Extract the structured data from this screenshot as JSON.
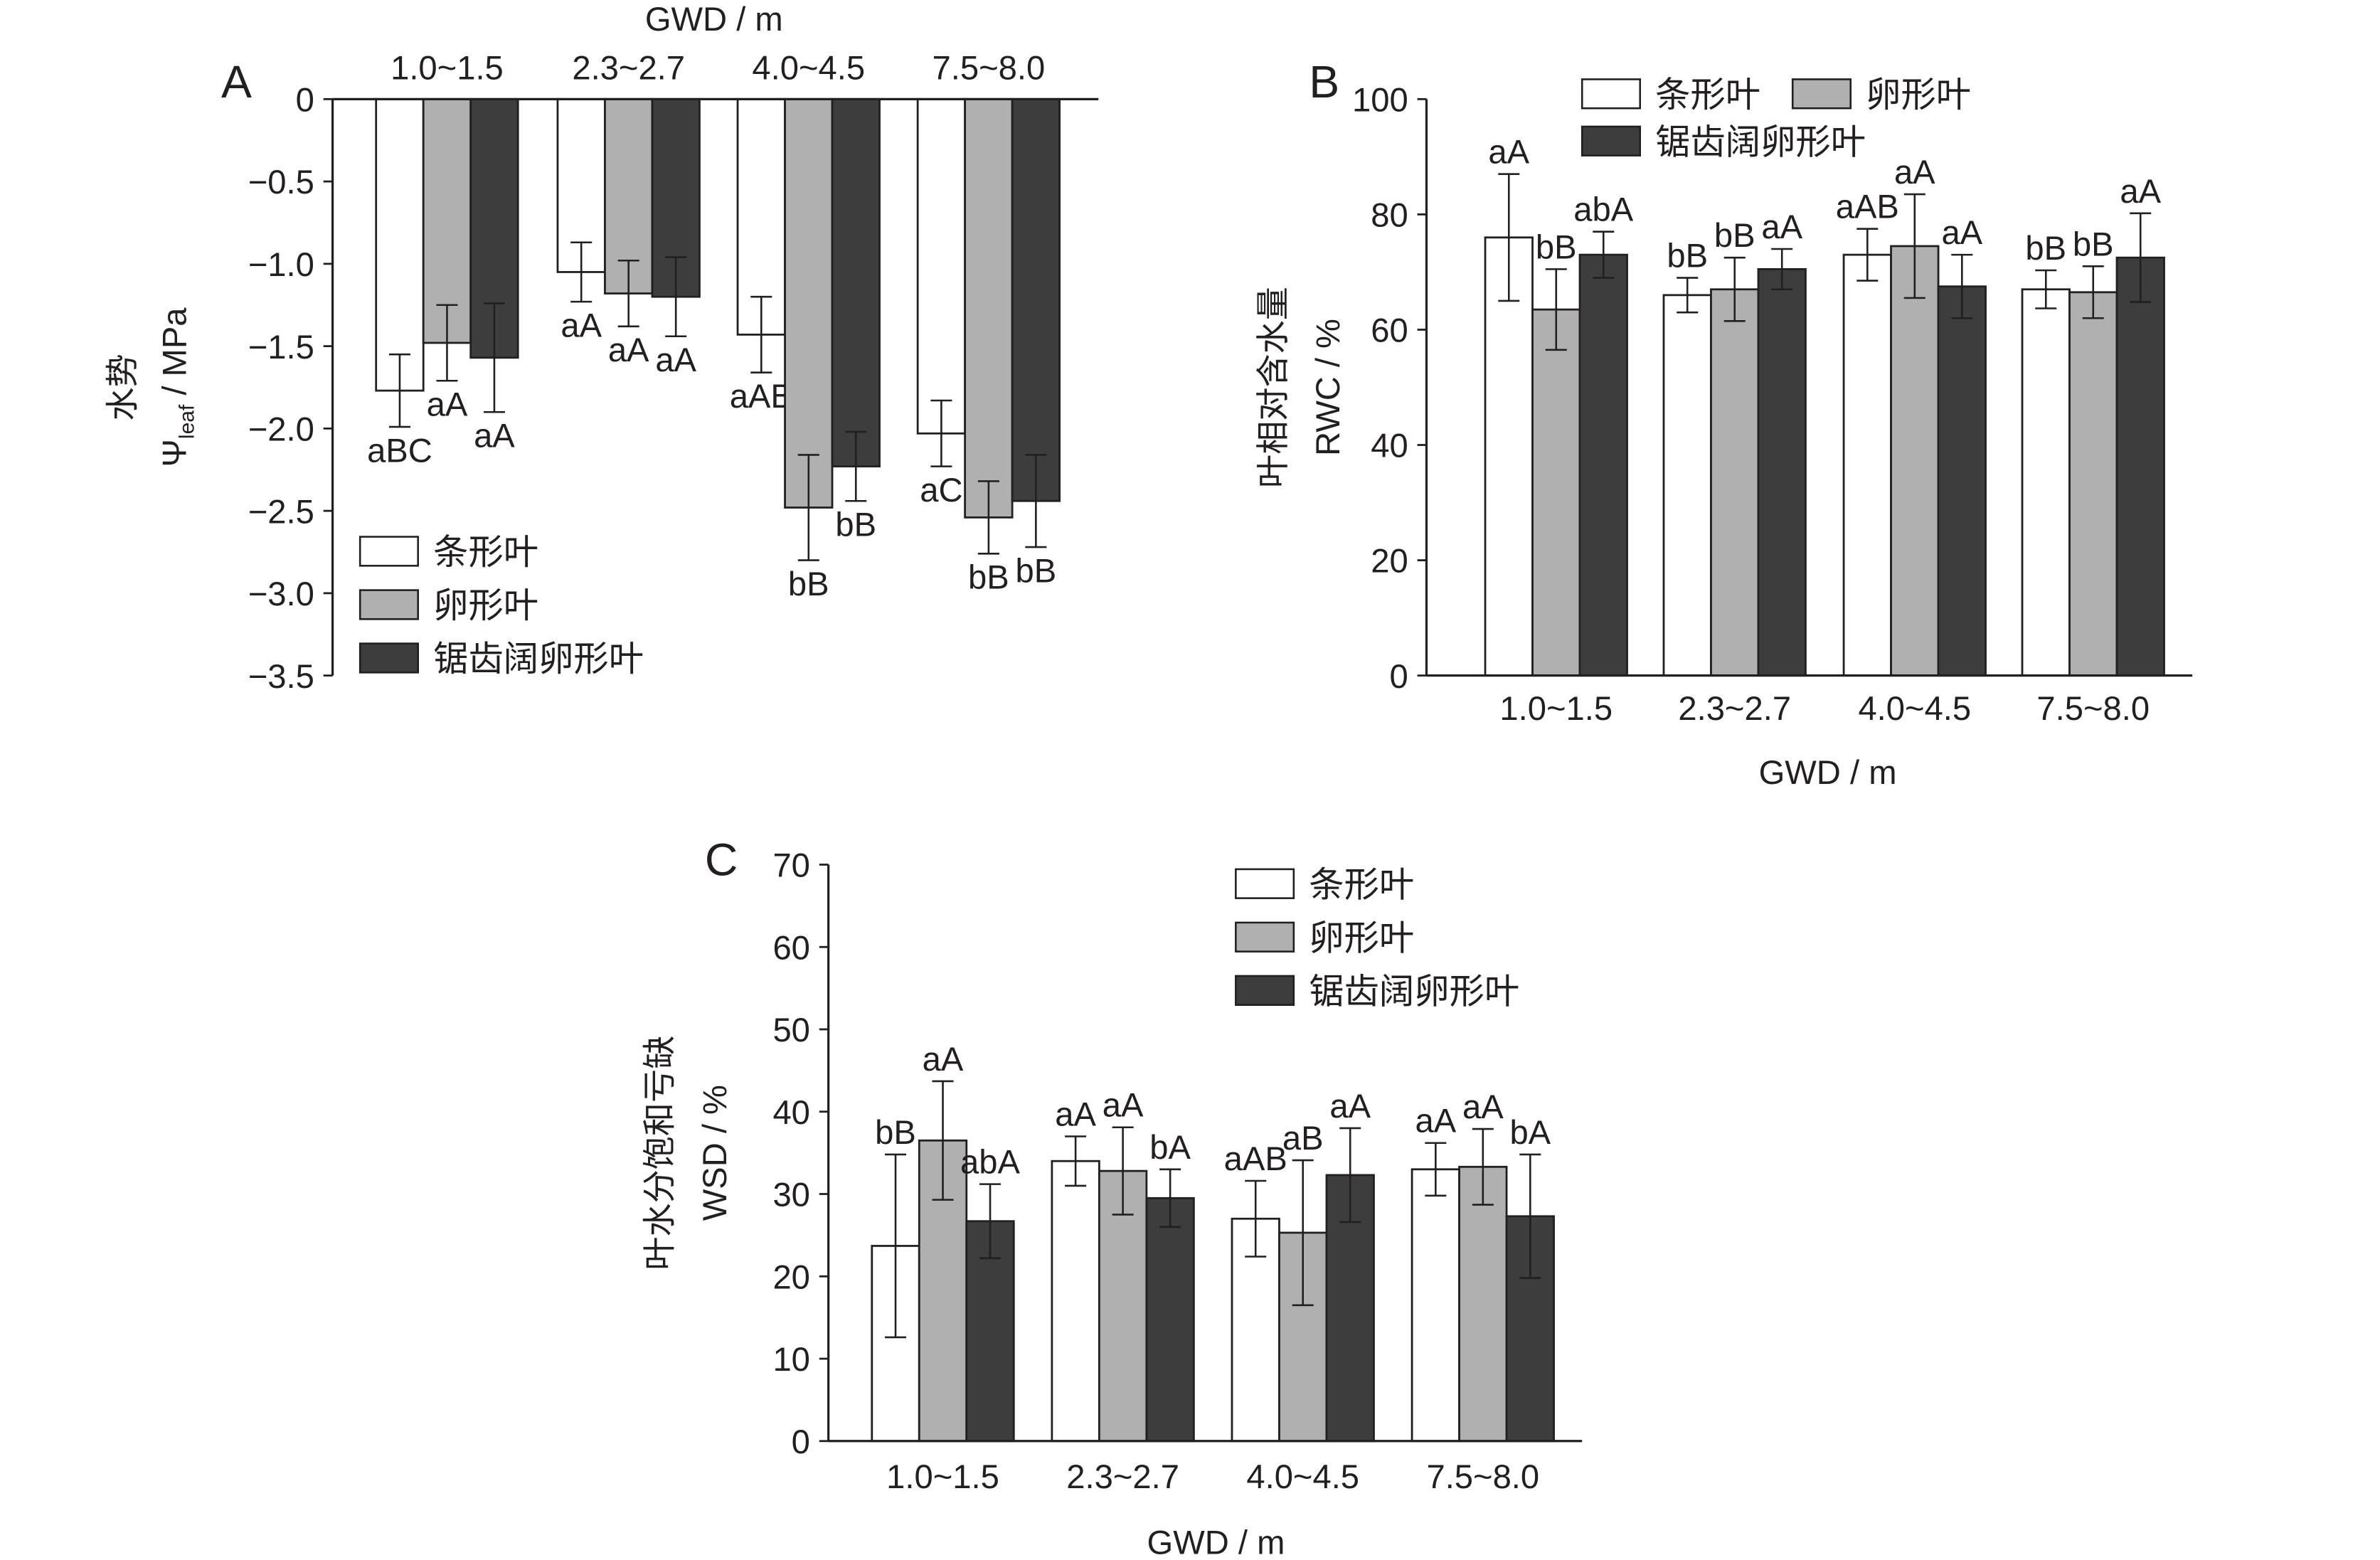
{
  "chart_data": [
    {
      "panel": "A",
      "type": "bar",
      "xlabel": "GWD / m",
      "ylabel": "水势",
      "ylabel2": {
        "main": "Ψ",
        "sub": "leaf",
        "rest": " / MPa"
      },
      "categories": [
        "1.0~1.5",
        "2.3~2.7",
        "4.0~4.5",
        "7.5~8.0"
      ],
      "ylim": [
        -3.5,
        0
      ],
      "yticks": [
        0,
        -0.5,
        -1.0,
        -1.5,
        -2.0,
        -2.5,
        -3.0,
        -3.5
      ],
      "ytick_labels": [
        "0",
        "−0.5",
        "−1.0",
        "−1.5",
        "−2.0",
        "−2.5",
        "−3.0",
        "−3.5"
      ],
      "legend_placement": "bottom-left",
      "series": [
        {
          "name": "条形叶",
          "color": "#ffffff",
          "values": [
            -1.77,
            -1.05,
            -1.43,
            -2.03
          ],
          "errors": [
            0.22,
            0.18,
            0.23,
            0.2
          ],
          "labels": [
            "aBC",
            "aA",
            "aAB",
            "aC"
          ]
        },
        {
          "name": "卵形叶",
          "color": "#b0b0b0",
          "values": [
            -1.48,
            -1.18,
            -2.48,
            -2.54
          ],
          "errors": [
            0.23,
            0.2,
            0.32,
            0.22
          ],
          "labels": [
            "aA",
            "aA",
            "bB",
            "bB"
          ]
        },
        {
          "name": "锯齿阔卵形叶",
          "color": "#3d3d3d",
          "values": [
            -1.57,
            -1.2,
            -2.23,
            -2.44
          ],
          "errors": [
            0.33,
            0.24,
            0.21,
            0.28
          ],
          "labels": [
            "aA",
            "aA",
            "bB",
            "bB"
          ]
        }
      ]
    },
    {
      "panel": "B",
      "type": "bar",
      "xlabel": "GWD / m",
      "ylabel": "叶相对含水量",
      "ylabel2": {
        "main": "RWC / %",
        "sub": "",
        "rest": ""
      },
      "categories": [
        "1.0~1.5",
        "2.3~2.7",
        "4.0~4.5",
        "7.5~8.0"
      ],
      "ylim": [
        0,
        100
      ],
      "yticks": [
        0,
        20,
        40,
        60,
        80,
        100
      ],
      "ytick_labels": [
        "0",
        "20",
        "40",
        "60",
        "80",
        "100"
      ],
      "legend_placement": "top",
      "series": [
        {
          "name": "条形叶",
          "color": "#ffffff",
          "values": [
            76,
            66,
            73,
            67
          ],
          "errors": [
            11,
            3,
            4.5,
            3.3
          ],
          "labels": [
            "aA",
            "bB",
            "aAB",
            "bB"
          ]
        },
        {
          "name": "卵形叶",
          "color": "#b0b0b0",
          "values": [
            63.5,
            67,
            74.5,
            66.5
          ],
          "errors": [
            7,
            5.5,
            9,
            4.5
          ],
          "labels": [
            "bB",
            "bB",
            "aA",
            "bB"
          ]
        },
        {
          "name": "锯齿阔卵形叶",
          "color": "#3d3d3d",
          "values": [
            73,
            70.5,
            67.5,
            72.5
          ],
          "errors": [
            4,
            3.5,
            5.5,
            7.7
          ],
          "labels": [
            "abA",
            "aA",
            "aA",
            "aA"
          ]
        }
      ]
    },
    {
      "panel": "C",
      "type": "bar",
      "xlabel": "GWD / m",
      "ylabel": "叶水分饱和亏缺",
      "ylabel2": {
        "main": "WSD / %",
        "sub": "",
        "rest": ""
      },
      "categories": [
        "1.0~1.5",
        "2.3~2.7",
        "4.0~4.5",
        "7.5~8.0"
      ],
      "ylim": [
        0,
        70
      ],
      "yticks": [
        0,
        10,
        20,
        30,
        40,
        50,
        60,
        70
      ],
      "ytick_labels": [
        "0",
        "10",
        "20",
        "30",
        "40",
        "50",
        "60",
        "70"
      ],
      "legend_placement": "top-right",
      "series": [
        {
          "name": "条形叶",
          "color": "#ffffff",
          "values": [
            23.7,
            34,
            27,
            33
          ],
          "errors": [
            11.1,
            3,
            4.6,
            3.2
          ],
          "labels": [
            "bB",
            "aA",
            "aAB",
            "aA"
          ]
        },
        {
          "name": "卵形叶",
          "color": "#b0b0b0",
          "values": [
            36.5,
            32.8,
            25.3,
            33.3
          ],
          "errors": [
            7.2,
            5.3,
            8.8,
            4.6
          ],
          "labels": [
            "aA",
            "aA",
            "aB",
            "aA"
          ]
        },
        {
          "name": "锯齿阔卵形叶",
          "color": "#3d3d3d",
          "values": [
            26.7,
            29.5,
            32.3,
            27.3
          ],
          "errors": [
            4.5,
            3.5,
            5.7,
            7.5
          ],
          "labels": [
            "abA",
            "bA",
            "aA",
            "bA"
          ]
        }
      ]
    }
  ]
}
